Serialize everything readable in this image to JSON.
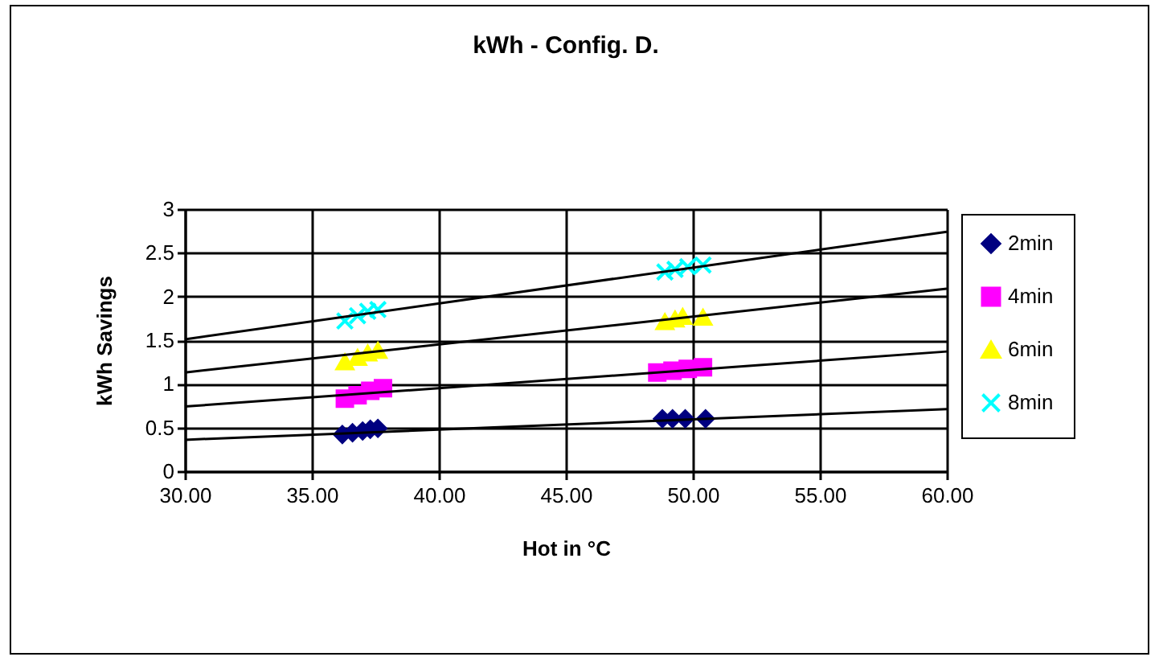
{
  "chart_data": {
    "type": "scatter",
    "title": "kWh - Config. D.",
    "xlabel": "Hot in °C",
    "ylabel": "kWh Savings",
    "xlim": [
      30,
      60
    ],
    "xticks": [
      {
        "value": 30,
        "label": "30.00"
      },
      {
        "value": 35,
        "label": "35.00"
      },
      {
        "value": 40,
        "label": "40.00"
      },
      {
        "value": 45,
        "label": "45.00"
      },
      {
        "value": 50,
        "label": "50.00"
      },
      {
        "value": 55,
        "label": "55.00"
      },
      {
        "value": 60,
        "label": "60.00"
      }
    ],
    "ylim": [
      0,
      3
    ],
    "yticks": [
      0,
      0.5,
      1,
      1.5,
      2,
      2.5,
      3
    ],
    "grid": true,
    "legend": "right",
    "series": [
      {
        "name": "2min",
        "marker": "diamond",
        "color": "#000080",
        "x": [
          36.2,
          36.6,
          37.0,
          37.3,
          37.6,
          48.8,
          49.2,
          49.7,
          50.5
        ],
        "values": [
          0.42,
          0.44,
          0.46,
          0.48,
          0.49,
          0.6,
          0.6,
          0.6,
          0.6
        ]
      },
      {
        "name": "4min",
        "marker": "square",
        "color": "#ff00ff",
        "x": [
          36.3,
          36.8,
          37.3,
          37.8,
          48.6,
          49.2,
          49.8,
          50.4
        ],
        "values": [
          0.83,
          0.87,
          0.92,
          0.95,
          1.13,
          1.15,
          1.17,
          1.19
        ]
      },
      {
        "name": "6min",
        "marker": "triangle",
        "color": "#ffff00",
        "x": [
          36.3,
          36.8,
          37.2,
          37.6,
          48.9,
          49.3,
          49.6,
          50.4
        ],
        "values": [
          1.25,
          1.3,
          1.35,
          1.38,
          1.71,
          1.74,
          1.77,
          1.76
        ]
      },
      {
        "name": "8min",
        "marker": "cross",
        "color": "#00ffff",
        "x": [
          36.3,
          36.8,
          37.2,
          37.6,
          48.9,
          49.3,
          49.8,
          50.4
        ],
        "values": [
          1.72,
          1.78,
          1.83,
          1.85,
          2.28,
          2.31,
          2.34,
          2.36
        ]
      },
      {
        "type": "line",
        "color": "#000000",
        "x": [
          30,
          60
        ],
        "values": [
          0.36,
          0.71
        ]
      },
      {
        "type": "line",
        "color": "#000000",
        "x": [
          30,
          60
        ],
        "values": [
          0.74,
          1.37
        ]
      },
      {
        "type": "line",
        "color": "#000000",
        "x": [
          30,
          60
        ],
        "values": [
          1.13,
          2.09
        ]
      },
      {
        "type": "line",
        "color": "#000000",
        "x": [
          30,
          60
        ],
        "values": [
          1.51,
          2.74
        ]
      }
    ]
  }
}
